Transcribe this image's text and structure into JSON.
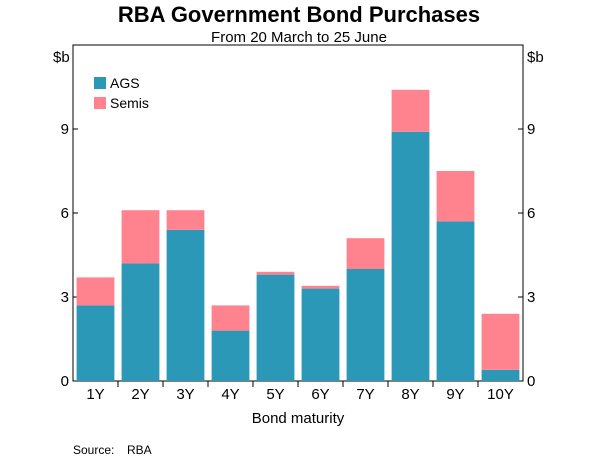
{
  "chart_data": {
    "type": "bar",
    "stacked": true,
    "title": "RBA Government Bond Purchases",
    "subtitle": "From 20 March to 25 June",
    "xlabel": "Bond maturity",
    "ylabel_left": "$b",
    "ylabel_right": "$b",
    "ylim": [
      0,
      12
    ],
    "yticks": [
      0,
      3,
      6,
      9
    ],
    "categories": [
      "1Y",
      "2Y",
      "3Y",
      "4Y",
      "5Y",
      "6Y",
      "7Y",
      "8Y",
      "9Y",
      "10Y"
    ],
    "series": [
      {
        "name": "AGS",
        "color": "#2b98b7",
        "values": [
          2.7,
          4.2,
          5.4,
          1.8,
          3.8,
          3.3,
          4.0,
          8.9,
          5.7,
          0.4
        ]
      },
      {
        "name": "Semis",
        "color": "#ff838f",
        "values": [
          1.0,
          1.9,
          0.7,
          0.9,
          0.1,
          0.1,
          1.1,
          1.5,
          1.8,
          2.0
        ]
      }
    ],
    "legend_position": "top-left",
    "grid": false,
    "source_label": "Source:",
    "source_text": "RBA"
  }
}
